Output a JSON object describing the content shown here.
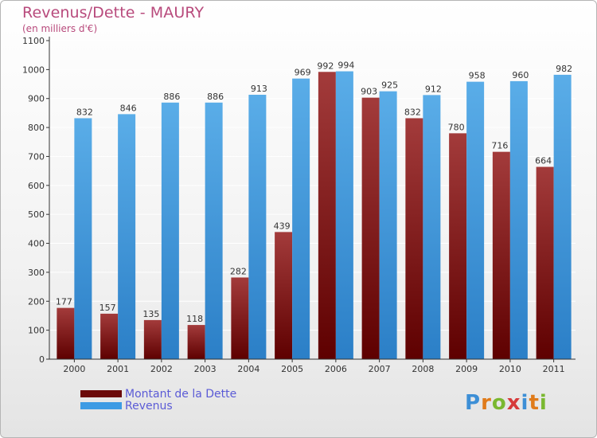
{
  "header": {
    "title": "Revenus/Dette - MAURY",
    "subtitle": "(en milliers d'€)"
  },
  "legend": {
    "items": [
      {
        "label": "Montant de la Dette",
        "color": "#6b0a0a"
      },
      {
        "label": "Revenus",
        "color": "#3d9be4"
      }
    ]
  },
  "logo": {
    "text": "Proxiti",
    "letter_colors": [
      "#3d8fd6",
      "#e07b1a",
      "#7ab830",
      "#d63a3a",
      "#3d8fd6",
      "#e07b1a",
      "#7ab830"
    ]
  },
  "colors": {
    "debt_top": "#a33b3b",
    "debt_bottom": "#5e0000",
    "revenue_top": "#5aade8",
    "revenue_bottom": "#2b7fc7",
    "axis": "#333333",
    "grid": "#ffffff"
  },
  "chart_data": {
    "type": "bar",
    "categories": [
      "2000",
      "2001",
      "2002",
      "2003",
      "2004",
      "2005",
      "2006",
      "2007",
      "2008",
      "2009",
      "2010",
      "2011"
    ],
    "series": [
      {
        "name": "Montant de la Dette",
        "values": [
          177,
          157,
          135,
          118,
          282,
          439,
          992,
          903,
          832,
          780,
          716,
          664
        ]
      },
      {
        "name": "Revenus",
        "values": [
          832,
          846,
          886,
          886,
          913,
          969,
          994,
          925,
          912,
          958,
          960,
          982
        ]
      }
    ],
    "ylim": [
      0,
      1100
    ],
    "yticks": [
      0,
      100,
      200,
      300,
      400,
      500,
      600,
      700,
      800,
      900,
      1000,
      1100
    ],
    "grid": true,
    "legend_position": "bottom-left"
  }
}
